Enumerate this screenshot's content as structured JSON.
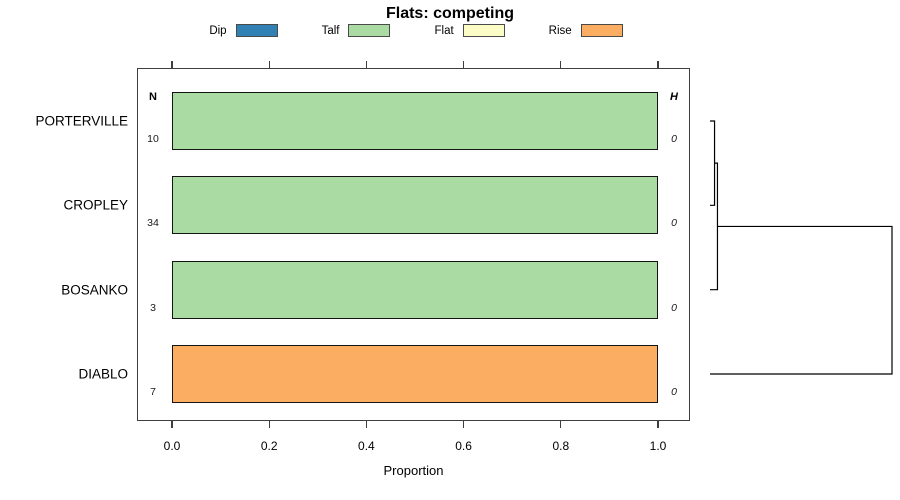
{
  "title": "Flats: competing",
  "legend": {
    "items": [
      {
        "label": "Dip",
        "color": "#3181B5"
      },
      {
        "label": "Talf",
        "color": "#A9DBA2"
      },
      {
        "label": "Flat",
        "color": "#FCFCC6"
      },
      {
        "label": "Rise",
        "color": "#FBAD62"
      }
    ]
  },
  "columns": {
    "n_header": "N",
    "h_header": "H"
  },
  "x_axis": {
    "label": "Proportion",
    "tick_labels": [
      "0.0",
      "0.2",
      "0.4",
      "0.6",
      "0.8",
      "1.0"
    ],
    "tick_values": [
      0,
      0.2,
      0.4,
      0.6,
      0.8,
      1.0
    ]
  },
  "chart_data": {
    "type": "bar",
    "orientation": "horizontal",
    "stacked": true,
    "title": "Flats: competing",
    "xlabel": "Proportion",
    "xlim": [
      0,
      1
    ],
    "grid": false,
    "legend_position": "top",
    "categories": [
      "PORTERVILLE",
      "CROPLEY",
      "BOSANKO",
      "DIABLO"
    ],
    "n_values": [
      10,
      34,
      3,
      7
    ],
    "h_values": [
      0,
      0,
      0,
      0
    ],
    "series": [
      {
        "name": "Dip",
        "color": "#3181B5",
        "values": [
          0,
          0,
          0,
          0
        ]
      },
      {
        "name": "Talf",
        "color": "#A9DBA2",
        "values": [
          1,
          1,
          1,
          0
        ]
      },
      {
        "name": "Flat",
        "color": "#FCFCC6",
        "values": [
          0,
          0,
          0,
          0
        ]
      },
      {
        "name": "Rise",
        "color": "#FBAD62",
        "values": [
          0,
          0,
          0,
          1
        ]
      }
    ],
    "dendrogram": {
      "leaves": [
        "PORTERVILLE",
        "CROPLEY",
        "BOSANKO",
        "DIABLO"
      ],
      "merges": [
        {
          "a": "leaf:0",
          "b": "leaf:1",
          "height": 0.025
        },
        {
          "a": "merge:0",
          "b": "leaf:2",
          "height": 0.041
        },
        {
          "a": "merge:1",
          "b": "leaf:3",
          "height": 1.0
        }
      ]
    }
  }
}
